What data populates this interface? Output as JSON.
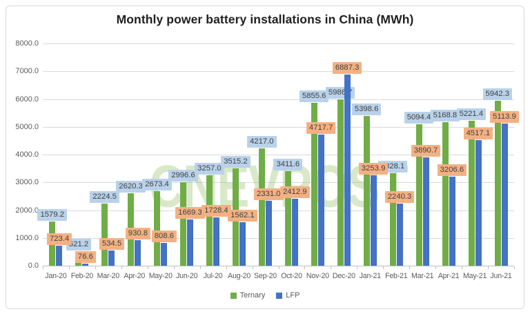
{
  "title": "Monthly power battery installations in China (MWh)",
  "watermark": "CNEVPOST",
  "chart_data": {
    "type": "bar",
    "title": "Monthly power battery installations in China (MWh)",
    "categories": [
      "Jan-20",
      "Feb-20",
      "Mar-20",
      "Apr-20",
      "May-20",
      "Jun-20",
      "Jul-20",
      "Aug-20",
      "Sep-20",
      "Oct-20",
      "Nov-20",
      "Dec-20",
      "Jan-21",
      "Feb-21",
      "Mar-21",
      "Apr-21",
      "May-21",
      "Jun-21"
    ],
    "series": [
      {
        "name": "Ternary",
        "bar_color": "#70ad47",
        "label_bg": "#b9d2ea",
        "values": [
          1579.2,
          521.2,
          2224.5,
          2620.3,
          2673.4,
          2996.6,
          3257.0,
          3515.2,
          4217.0,
          3411.6,
          5855.6,
          5986.7,
          5398.6,
          3328.1,
          5094.4,
          5168.8,
          5221.4,
          5942.3
        ]
      },
      {
        "name": "LFP",
        "bar_color": "#4472c4",
        "label_bg": "#f3b183",
        "values": [
          723.4,
          76.6,
          534.5,
          930.8,
          808.6,
          1669.3,
          1728.4,
          1562.1,
          2331.0,
          2412.9,
          4717.7,
          6887.3,
          3253.9,
          2240.3,
          3890.7,
          3206.6,
          4517.1,
          5113.9
        ]
      }
    ],
    "xlabel": "",
    "ylabel": "",
    "ylim": [
      0,
      8000
    ],
    "ytick_step": 1000,
    "ytick_labels": [
      "0.0",
      "1000.0",
      "2000.0",
      "3000.0",
      "4000.0",
      "5000.0",
      "6000.0",
      "7000.0",
      "8000.0"
    ],
    "grid": true,
    "legend_position": "bottom",
    "value_labels": "one decimal, shown above each bar"
  }
}
